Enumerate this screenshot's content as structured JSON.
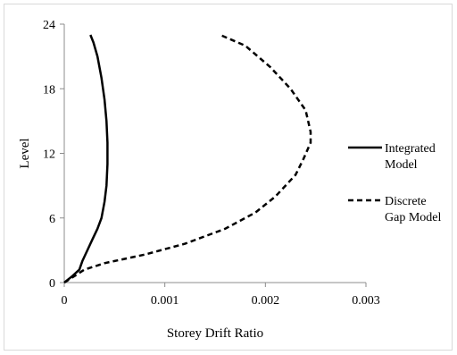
{
  "chart_data": {
    "type": "line",
    "xlabel": "Storey Drift Ratio",
    "ylabel": "Level",
    "xlim": [
      0,
      0.003
    ],
    "ylim": [
      0,
      24
    ],
    "xticks": [
      0,
      0.001,
      0.002,
      0.003
    ],
    "xtick_labels": [
      "0",
      "0.001",
      "0.002",
      "0.003"
    ],
    "yticks": [
      0,
      6,
      12,
      18,
      24
    ],
    "ytick_labels": [
      "0",
      "6",
      "12",
      "18",
      "24"
    ],
    "grid": false,
    "legend_position": "right",
    "series": [
      {
        "name": "Integrated Model",
        "style": "solid",
        "color": "#000000",
        "x": [
          0,
          8e-05,
          0.00015,
          0.00018,
          0.00023,
          0.00028,
          0.00033,
          0.00037,
          0.0004,
          0.00042,
          0.00043,
          0.00043,
          0.00042,
          0.0004,
          0.00037,
          0.00033,
          0.00029,
          0.00026
        ],
        "y": [
          0,
          0.6,
          1.2,
          2,
          3,
          4,
          5,
          6,
          7.5,
          9,
          11,
          13,
          15,
          17,
          19,
          21,
          22.3,
          23
        ]
      },
      {
        "name": "Discrete Gap Model",
        "style": "dashed",
        "color": "#000000",
        "x": [
          0,
          0.0001,
          0.0002,
          0.0004,
          0.0008,
          0.0012,
          0.0016,
          0.0019,
          0.0021,
          0.0023,
          0.00238,
          0.00245,
          0.00245,
          0.0024,
          0.00225,
          0.00205,
          0.0018,
          0.00155
        ],
        "y": [
          0,
          0.6,
          1.2,
          1.8,
          2.6,
          3.6,
          5,
          6.5,
          8,
          10,
          11.5,
          13,
          14,
          16,
          18,
          20,
          22,
          23
        ]
      }
    ]
  }
}
